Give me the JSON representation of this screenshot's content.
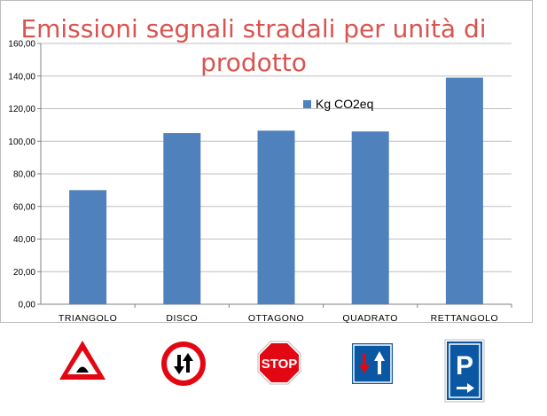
{
  "chart_data": {
    "type": "bar",
    "title": "Emissioni segnali stradali per unità di prodotto",
    "title_lines": [
      "Emissioni segnali stradali per unità di",
      "prodotto"
    ],
    "categories": [
      "TRIANGOLO",
      "DISCO",
      "OTTAGONO",
      "QUADRATO",
      "RETTANGOLO"
    ],
    "series": [
      {
        "name": "Kg CO2eq",
        "values": [
          70,
          105,
          106.5,
          106,
          139
        ],
        "color": "#4f81bd"
      }
    ],
    "ylim": [
      0,
      160
    ],
    "yticks": [
      "0,00",
      "20,00",
      "40,00",
      "60,00",
      "80,00",
      "100,00",
      "120,00",
      "140,00",
      "160,00"
    ],
    "grid": true,
    "legend_position": "top-right"
  },
  "signs": [
    {
      "icon": "bump-warning-triangle-sign-icon",
      "text": ""
    },
    {
      "icon": "two-way-traffic-priority-disc-sign-icon",
      "text": ""
    },
    {
      "icon": "stop-octagon-sign-icon",
      "text": "STOP"
    },
    {
      "icon": "right-of-way-square-sign-icon",
      "text": ""
    },
    {
      "icon": "parking-rectangle-sign-icon",
      "text": "P"
    }
  ],
  "colors": {
    "title": "#d9534f",
    "bar": "#4f81bd",
    "sign_red": "#e30613",
    "sign_blue": "#0a57a4"
  }
}
